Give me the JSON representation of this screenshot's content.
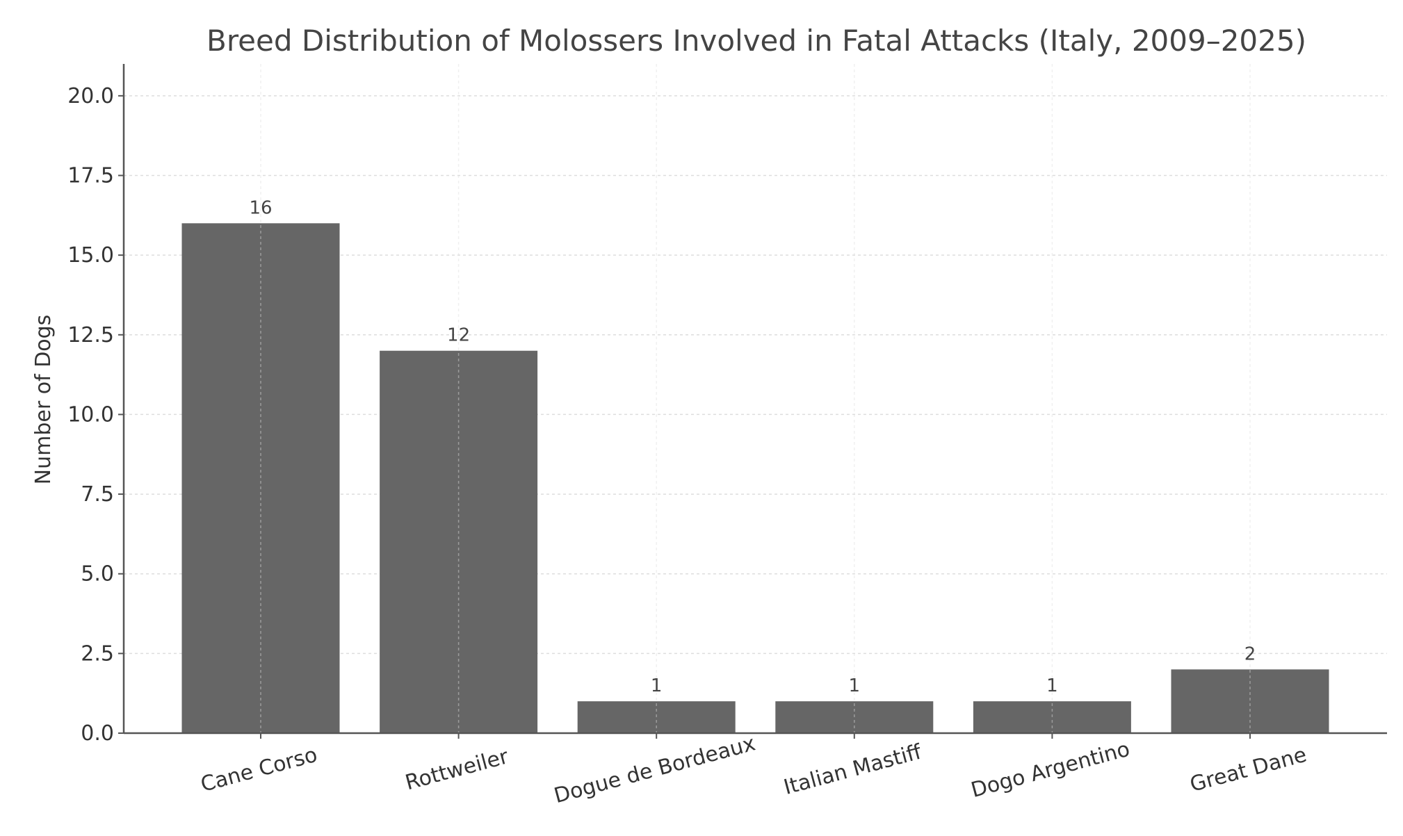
{
  "chart_data": {
    "type": "bar",
    "title": "Breed Distribution of Molossers Involved in Fatal Attacks (Italy, 2009–2025)",
    "xlabel": "",
    "ylabel": "Number of Dogs",
    "categories": [
      "Cane Corso",
      "Rottweiler",
      "Dogue de Bordeaux",
      "Italian Mastiff",
      "Dogo Argentino",
      "Great Dane"
    ],
    "values": [
      16,
      12,
      1,
      1,
      1,
      2
    ],
    "data_labels": [
      "16",
      "12",
      "1",
      "1",
      "1",
      "2"
    ],
    "ylim": [
      0,
      21
    ],
    "yticks": [
      0,
      2.5,
      5,
      7.5,
      10,
      12.5,
      15,
      17.5,
      20
    ],
    "ytick_labels": [
      "0.0",
      "2.5",
      "5.0",
      "7.5",
      "10.0",
      "12.5",
      "15.0",
      "17.5",
      "20.0"
    ],
    "bar_color": "#666666",
    "grid": true,
    "legend": "none"
  }
}
